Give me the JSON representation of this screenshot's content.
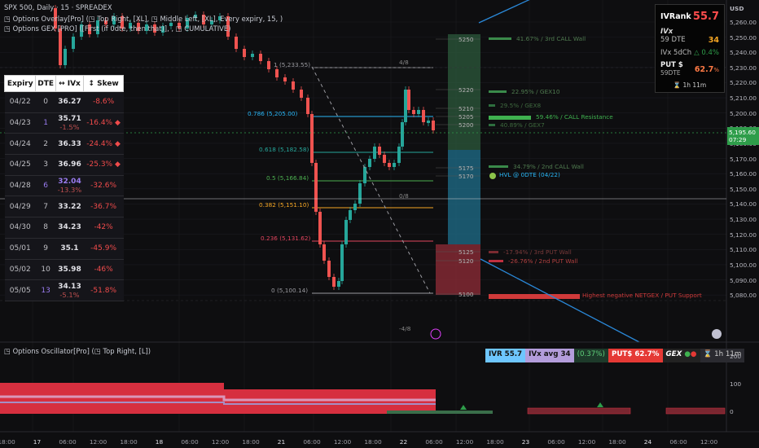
{
  "header": {
    "line1": "SPX 500, Daily · 15 · SPREADEX",
    "line2": "◳ Options Overlay[Pro] (◳ Top Right, [XL], ◳ Middle Left, [XL], Every expiry, 15, )",
    "line3": "◳ Options GEX [PRO] ([First (if 0dte, then that)], , ◳ CUMULATIVE)",
    "oscillator": "◳ Options Oscillator[Pro] (◳ Top Right, [L])"
  },
  "expiry_table": {
    "headers": [
      "Expiry",
      "DTE",
      "↔ IVx",
      "↕ Skew"
    ],
    "rows": [
      {
        "expiry": "04/22",
        "dte": "0",
        "ivx": "36.27",
        "ivx_change": "",
        "skew": "-8.6%"
      },
      {
        "expiry": "04/23",
        "dte": "1",
        "ivx": "35.71",
        "ivx_change": "-1.5%",
        "skew": "-16.4%"
      },
      {
        "expiry": "04/24",
        "dte": "2",
        "ivx": "36.33",
        "ivx_change": "",
        "skew": "-24.4%"
      },
      {
        "expiry": "04/25",
        "dte": "3",
        "ivx": "36.96",
        "ivx_change": "",
        "skew": "-25.3%"
      },
      {
        "expiry": "04/28",
        "dte": "6",
        "ivx": "32.04",
        "ivx_change": "-13.3%",
        "skew": "-32.6%"
      },
      {
        "expiry": "04/29",
        "dte": "7",
        "ivx": "33.22",
        "ivx_change": "",
        "skew": "-36.7%"
      },
      {
        "expiry": "04/30",
        "dte": "8",
        "ivx": "34.23",
        "ivx_change": "",
        "skew": "-42%"
      },
      {
        "expiry": "05/01",
        "dte": "9",
        "ivx": "35.1",
        "ivx_change": "",
        "skew": "-45.9%"
      },
      {
        "expiry": "05/02",
        "dte": "10",
        "ivx": "35.98",
        "ivx_change": "",
        "skew": "-46%"
      },
      {
        "expiry": "05/05",
        "dte": "13",
        "ivx": "34.13",
        "ivx_change": "-5.1%",
        "skew": "-51.8%"
      }
    ]
  },
  "ivr_panel": {
    "ivrank_label": "IVRank",
    "ivrank": "55.7",
    "ivx_label": "IVx",
    "ivx_dte": "59 DTE",
    "ivx": "34",
    "ivx5d_label": "IVx 5dCh",
    "ivx5d": "△ 0.4%",
    "put_label": "PUT $",
    "put_dte": "59DTE",
    "put": "62.7",
    "put_unit": "%",
    "timer": "⌛ 1h 11m"
  },
  "price_axis": {
    "currency": "USD",
    "ticks": [
      "5,260.00",
      "5,250.00",
      "5,240.00",
      "5,230.00",
      "5,220.00",
      "5,210.00",
      "5,200.00",
      "5,190.00",
      "5,180.00",
      "5,170.00",
      "5,160.00",
      "5,150.00",
      "5,140.00",
      "5,130.00",
      "5,120.00",
      "5,110.00",
      "5,100.00",
      "5,090.00",
      "5,080.00"
    ],
    "current_price": "5,195.60",
    "current_time": "07:29",
    "osc_ticks": [
      "200",
      "100",
      "0"
    ]
  },
  "fib": [
    {
      "label": "1 (5,233.55)",
      "color": "#9a9aa0"
    },
    {
      "label": "0.786 (5,205.00)",
      "color": "#29b6f6"
    },
    {
      "label": "0.618 (5,182.58)",
      "color": "#26a69a"
    },
    {
      "label": "0.5 (5,166.84)",
      "color": "#4caf50"
    },
    {
      "label": "0.382 (5,151.10)",
      "color": "#f5a623"
    },
    {
      "label": "0.236 (5,131.62)",
      "color": "#e0455e"
    },
    {
      "label": "0 (5,100.14)",
      "color": "#9a9aa0"
    }
  ],
  "murray": [
    "4/8",
    "0/8",
    "-4/8"
  ],
  "strikes": [
    "5250",
    "5220",
    "5210",
    "5205",
    "5200",
    "5175",
    "5170",
    "5125",
    "5120",
    "5100"
  ],
  "gex_labels": [
    {
      "text": "41.67% / 3rd CALL Wall",
      "color": "#4f7a4f"
    },
    {
      "text": "22.95% / GEX10",
      "color": "#4f7a4f"
    },
    {
      "text": "29.5% / GEX8",
      "color": "#3f6a3f"
    },
    {
      "text": "59.46% / CALL Resistance",
      "color": "#3fb14f"
    },
    {
      "text": "40.89% / GEX7",
      "color": "#3f6a3f"
    },
    {
      "text": "34.79% / 2nd CALL Wall",
      "color": "#4f7a4f"
    },
    {
      "text": "HVL @ 0DTE (04/22)",
      "color": "#29b6f6"
    },
    {
      "text": "-17.94% / 3rd PUT Wall",
      "color": "#7a3a3a"
    },
    {
      "text": "-26.76% / 2nd PUT Wall",
      "color": "#b04040"
    },
    {
      "text": "Highest negative NETGEX / PUT Support",
      "color": "#d03a3a"
    }
  ],
  "osc_badges": {
    "ivr": "IVR 55.7",
    "ivx": "IVx avg 34",
    "chg": "(0.37%)",
    "put": "PUT$ 62.7%",
    "gex": "GEX",
    "timer": "⌛ 1h 11m"
  },
  "time_axis": [
    "18:00",
    "17",
    "06:00",
    "12:00",
    "18:00",
    "18",
    "06:00",
    "12:00",
    "18:00",
    "21",
    "06:00",
    "12:00",
    "18:00",
    "22",
    "06:00",
    "12:00",
    "18:00",
    "23",
    "06:00",
    "12:00",
    "18:00",
    "24",
    "06:00",
    "12:00"
  ],
  "colors": {
    "up": "#26a69a",
    "down": "#ef5350",
    "price_badge": "#2e9d4a"
  }
}
